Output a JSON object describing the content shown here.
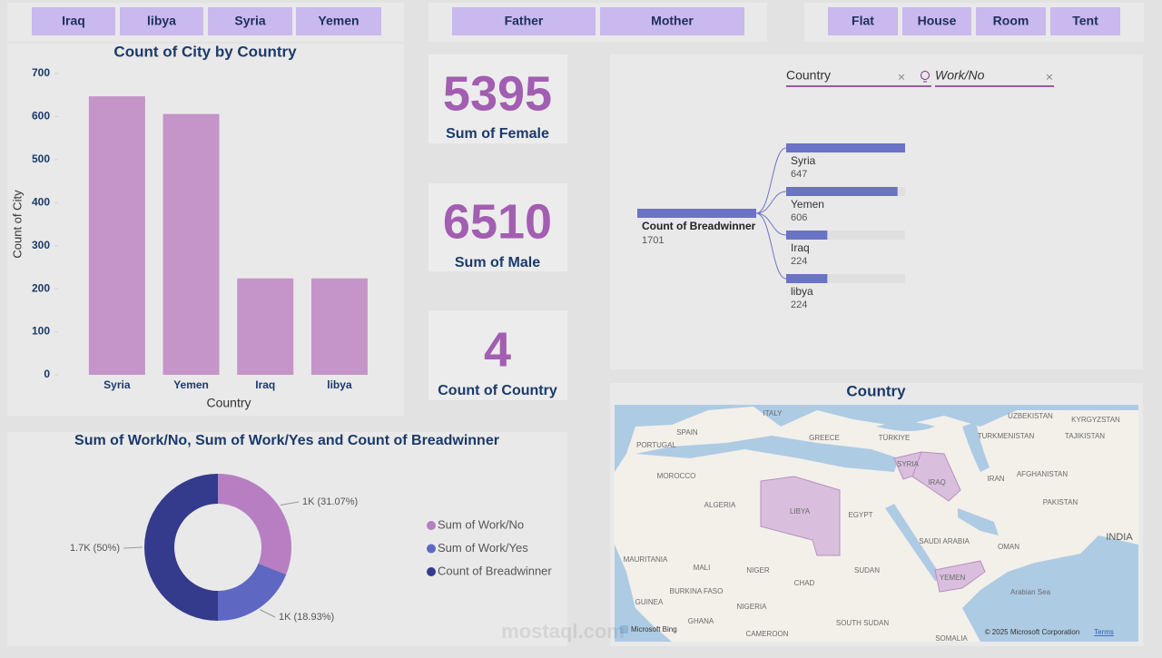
{
  "slicers": {
    "country": [
      "Iraq",
      "libya",
      "Syria",
      "Yemen"
    ],
    "family": [
      "Father",
      "Mother"
    ],
    "housing": [
      "Flat",
      "House",
      "Room",
      "Tent"
    ]
  },
  "cards": [
    {
      "value": 5395,
      "label": "Sum of Female"
    },
    {
      "value": 6510,
      "label": "Sum of Male"
    },
    {
      "value": 4,
      "label": "Count of Country"
    }
  ],
  "chart_data": [
    {
      "type": "bar",
      "title": "Count of City by Country",
      "x_label": "Country",
      "y_label": "Count of City",
      "categories": [
        "Syria",
        "Yemen",
        "Iraq",
        "libya"
      ],
      "values": [
        647,
        606,
        224,
        224
      ],
      "color": "#c594c9",
      "ylim": [
        0,
        700
      ],
      "yticks": [
        0,
        100,
        200,
        300,
        400,
        500,
        600,
        700
      ]
    },
    {
      "type": "decomposition",
      "fields": [
        "Country",
        "Work/No"
      ],
      "root_label": "Count of Breadwinner",
      "root_value": 1701,
      "categories": [
        "Syria",
        "Yemen",
        "Iraq",
        "libya"
      ],
      "values": [
        647,
        606,
        224,
        224
      ],
      "color": "#6b73c6"
    },
    {
      "type": "donut",
      "title": "Sum of Work/No, Sum of Work/Yes and Count of Breadwinner",
      "categories": [
        "Sum of Work/No",
        "Sum of Work/Yes",
        "Count of Breadwinner"
      ],
      "values": [
        31.07,
        18.93,
        50
      ],
      "value_labels": [
        "1K (31.07%)",
        "1K (18.93%)",
        "1.7K (50%)"
      ],
      "colors": [
        "#b77fc2",
        "#5e67c2",
        "#343a8c"
      ]
    }
  ],
  "map": {
    "title": "Country",
    "labels": [
      "ITALY",
      "PORTUGAL",
      "SPAIN",
      "GREECE",
      "TÜRKIYE",
      "TURKMENISTAN",
      "UZBEKISTAN",
      "KYRGYZSTAN",
      "TAJIKISTAN",
      "MOROCCO",
      "ALGERIA",
      "LIBYA",
      "EGYPT",
      "SYRIA",
      "IRAQ",
      "IRAN",
      "AFGHANISTAN",
      "PAKISTAN",
      "INDIA",
      "SAUDI ARABIA",
      "OMAN",
      "YEMEN",
      "SUDAN",
      "CHAD",
      "NIGER",
      "MALI",
      "MAURITANIA",
      "NIGERIA",
      "BURKINA FASO",
      "GUINEA",
      "GHANA",
      "CAMEROON",
      "SOUTH SUDAN",
      "SOMALIA",
      "Arabian Sea"
    ],
    "provider": "Microsoft Bing",
    "copyright": "© 2025 Microsoft Corporation",
    "terms": "Terms"
  },
  "watermark": "mostaql.com"
}
